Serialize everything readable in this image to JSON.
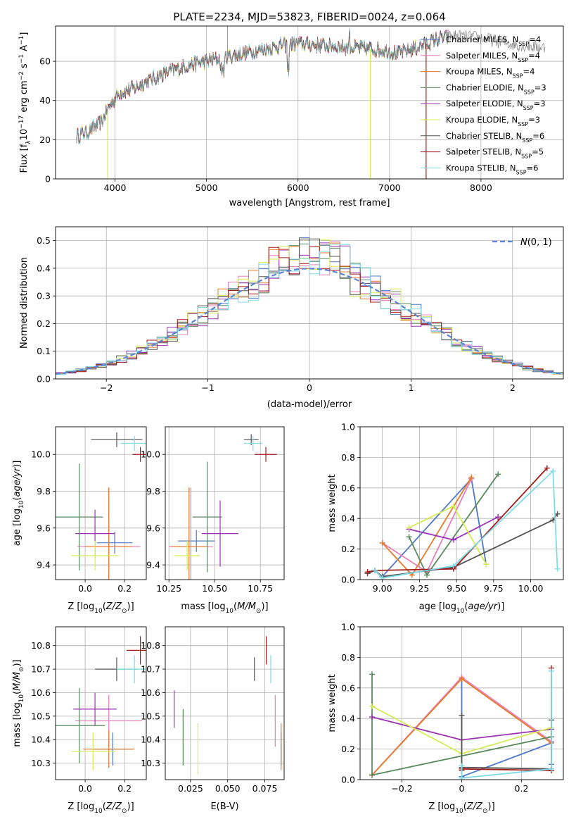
{
  "figure_title": "PLATE=2234, MJD=53823, FIBERID=0024, z=0.064",
  "palette": {
    "Chabrier MILES": "#4f78c8",
    "Salpeter MILES": "#e77fbb",
    "Kroupa MILES": "#e67c2c",
    "Chabrier ELODIE": "#5a8a5e",
    "Salpeter ELODIE": "#9b33b5",
    "Kroupa ELODIE": "#d6ec54",
    "Chabrier STELIB": "#555555",
    "Salpeter STELIB": "#a51c1c",
    "Kroupa STELIB": "#7fdce6",
    "data": "#808080",
    "normal": "#5b85d6"
  },
  "chart_data": [
    {
      "id": "spectrum",
      "type": "line",
      "xlabel": "wavelength [Angstrom, rest frame]",
      "ylabel": "Flux [f_λ 10^-17 erg cm^-2 s^-1 A^-1]",
      "xlim": [
        3350,
        8900
      ],
      "ylim": [
        0,
        78
      ],
      "xticks": [
        4000,
        5000,
        6000,
        7000,
        8000
      ],
      "yticks": [
        0,
        20,
        40,
        60
      ],
      "legend_position": "right",
      "legend": [
        {
          "model": "Chabrier MILES",
          "nssp": 4
        },
        {
          "model": "Salpeter MILES",
          "nssp": 4
        },
        {
          "model": "Kroupa MILES",
          "nssp": 4
        },
        {
          "model": "Chabrier ELODIE",
          "nssp": 3
        },
        {
          "model": "Salpeter ELODIE",
          "nssp": 3
        },
        {
          "model": "Kroupa ELODIE",
          "nssp": 3
        },
        {
          "model": "Chabrier STELIB",
          "nssp": 6
        },
        {
          "model": "Salpeter STELIB",
          "nssp": 5
        },
        {
          "model": "Kroupa STELIB",
          "nssp": 6
        }
      ],
      "continuum": {
        "x": [
          3580,
          3700,
          3850,
          3950,
          4050,
          4200,
          4400,
          4600,
          4800,
          5000,
          5200,
          5500,
          5800,
          6000,
          6300,
          6600,
          6900,
          7100,
          7300,
          7500,
          7700,
          8000,
          8300,
          8700
        ],
        "y": [
          22,
          24,
          29,
          38,
          44,
          46,
          51,
          55,
          58,
          60,
          62,
          65,
          68,
          69,
          68,
          67,
          66,
          64,
          67,
          71,
          73,
          72,
          69,
          67
        ]
      },
      "model_end_wavelength": 7650,
      "drops": [
        {
          "series": "Kroupa ELODIE",
          "x": 3920
        },
        {
          "series": "Kroupa ELODIE",
          "x": 6790
        },
        {
          "series": "Salpeter STELIB",
          "x": 7400
        }
      ]
    },
    {
      "id": "residuals",
      "type": "histogram",
      "xlabel": "(data-model)/error",
      "ylabel": "Normed distribution",
      "xlim": [
        -2.5,
        2.5
      ],
      "ylim": [
        0,
        0.55
      ],
      "xticks": [
        -2,
        -1,
        0,
        1,
        2
      ],
      "yticks": [
        0.0,
        0.1,
        0.2,
        0.3,
        0.4,
        0.5
      ],
      "bin_width": 0.1,
      "reference_curve": "N(0,1)",
      "legend_position": "top-right"
    },
    {
      "id": "age_vs_Z",
      "type": "errorbar",
      "xlabel": "Z [log10(Z/Z_sun)]",
      "ylabel": "age [log10(age/yr)]",
      "xlim": [
        -0.15,
        0.31
      ],
      "ylim": [
        9.32,
        10.15
      ],
      "xticks": [
        0.0,
        0.2
      ],
      "yticks": [
        9.4,
        9.6,
        9.8,
        10.0
      ],
      "points": [
        {
          "series": "Chabrier MILES",
          "x": 0.15,
          "xerr": 0.09,
          "y": 9.52,
          "yerr": 0.06
        },
        {
          "series": "Salpeter MILES",
          "x": 0.12,
          "xerr": 0.16,
          "y": 9.5,
          "yerr": 0.32
        },
        {
          "series": "Kroupa MILES",
          "x": 0.12,
          "xerr": 0.12,
          "y": 9.5,
          "yerr": 0.32
        },
        {
          "series": "Chabrier ELODIE",
          "x": -0.03,
          "xerr": 0.12,
          "y": 9.66,
          "yerr": 0.29
        },
        {
          "series": "Salpeter ELODIE",
          "x": 0.05,
          "xerr": 0.1,
          "y": 9.57,
          "yerr": 0.13
        },
        {
          "series": "Kroupa ELODIE",
          "x": 0.05,
          "xerr": 0.12,
          "y": 9.45,
          "yerr": 0.08
        },
        {
          "series": "Chabrier STELIB",
          "x": 0.16,
          "xerr": 0.13,
          "y": 10.08,
          "yerr": 0.04
        },
        {
          "series": "Salpeter STELIB",
          "x": 0.28,
          "xerr": 0.04,
          "y": 10.0,
          "yerr": 0.04
        },
        {
          "series": "Kroupa STELIB",
          "x": 0.25,
          "xerr": 0.07,
          "y": 10.06,
          "yerr": 0.04
        }
      ]
    },
    {
      "id": "age_vs_mass",
      "type": "errorbar",
      "xlabel": "mass [log10(M/M_sun)]",
      "ylabel": "",
      "xlim": [
        10.23,
        10.88
      ],
      "ylim": [
        9.32,
        10.15
      ],
      "xticks": [
        10.25,
        10.5,
        10.75
      ],
      "yticks": [
        9.4,
        9.6,
        9.8,
        10.0
      ],
      "points": [
        {
          "series": "Chabrier MILES",
          "x": 10.4,
          "xerr": 0.1,
          "y": 9.53,
          "yerr": 0.06
        },
        {
          "series": "Salpeter MILES",
          "x": 10.37,
          "xerr": 0.12,
          "y": 9.5,
          "yerr": 0.32
        },
        {
          "series": "Kroupa MILES",
          "x": 10.36,
          "xerr": 0.1,
          "y": 9.5,
          "yerr": 0.32
        },
        {
          "series": "Chabrier ELODIE",
          "x": 10.46,
          "xerr": 0.08,
          "y": 9.66,
          "yerr": 0.3
        },
        {
          "series": "Salpeter ELODIE",
          "x": 10.53,
          "xerr": 0.1,
          "y": 9.57,
          "yerr": 0.18
        },
        {
          "series": "Kroupa ELODIE",
          "x": 10.35,
          "xerr": 0.07,
          "y": 9.45,
          "yerr": 0.08
        },
        {
          "series": "Chabrier STELIB",
          "x": 10.7,
          "xerr": 0.04,
          "y": 10.08,
          "yerr": 0.03
        },
        {
          "series": "Salpeter STELIB",
          "x": 10.78,
          "xerr": 0.06,
          "y": 10.0,
          "yerr": 0.04
        },
        {
          "series": "Kroupa STELIB",
          "x": 10.71,
          "xerr": 0.05,
          "y": 10.06,
          "yerr": 0.04
        }
      ]
    },
    {
      "id": "weight_vs_age",
      "type": "line",
      "xlabel": "age [log10(age/yr)]",
      "ylabel": "mass weight",
      "xlim": [
        8.85,
        10.22
      ],
      "ylim": [
        0.0,
        1.0
      ],
      "xticks": [
        9.0,
        9.25,
        9.5,
        9.75,
        10.0
      ],
      "yticks": [
        0.0,
        0.2,
        0.4,
        0.6,
        0.8,
        1.0
      ],
      "series": [
        {
          "name": "Chabrier MILES",
          "x": [
            9.0,
            9.6,
            9.7
          ],
          "y": [
            0.02,
            0.66,
            0.1
          ]
        },
        {
          "name": "Salpeter MILES",
          "x": [
            9.0,
            9.3,
            9.6
          ],
          "y": [
            0.24,
            0.05,
            0.66
          ]
        },
        {
          "name": "Kroupa MILES",
          "x": [
            9.0,
            9.2,
            9.6
          ],
          "y": [
            0.24,
            0.03,
            0.67
          ]
        },
        {
          "name": "Chabrier ELODIE",
          "x": [
            9.18,
            9.3,
            9.78
          ],
          "y": [
            0.28,
            0.03,
            0.69
          ]
        },
        {
          "name": "Salpeter ELODIE",
          "x": [
            9.18,
            9.48,
            9.78
          ],
          "y": [
            0.33,
            0.26,
            0.41
          ]
        },
        {
          "name": "Kroupa ELODIE",
          "x": [
            9.18,
            9.48,
            9.7
          ],
          "y": [
            0.34,
            0.48,
            0.1
          ]
        },
        {
          "name": "Chabrier STELIB",
          "x": [
            8.9,
            8.95,
            9.0,
            9.48,
            10.15,
            10.18
          ],
          "y": [
            0.04,
            0.06,
            0.02,
            0.08,
            0.39,
            0.43
          ]
        },
        {
          "name": "Salpeter STELIB",
          "x": [
            8.9,
            8.95,
            9.48,
            10.11
          ],
          "y": [
            0.05,
            0.06,
            0.07,
            0.73
          ]
        },
        {
          "name": "Kroupa STELIB",
          "x": [
            8.95,
            9.0,
            9.48,
            10.15,
            10.18
          ],
          "y": [
            0.06,
            0.01,
            0.09,
            0.71,
            0.07
          ]
        }
      ]
    },
    {
      "id": "mass_vs_Z",
      "type": "errorbar",
      "xlabel": "Z [log10(Z/Z_sun)]",
      "ylabel": "mass [log10(M/M_sun)]",
      "xlim": [
        -0.15,
        0.31
      ],
      "ylim": [
        10.23,
        10.88
      ],
      "xticks": [
        0.0,
        0.2
      ],
      "yticks": [
        10.3,
        10.4,
        10.5,
        10.6,
        10.7,
        10.8
      ],
      "points": [
        {
          "series": "Chabrier MILES",
          "x": 0.14,
          "xerr": 0.1,
          "y": 10.36,
          "yerr": 0.07
        },
        {
          "series": "Salpeter MILES",
          "x": 0.12,
          "xerr": 0.17,
          "y": 10.48,
          "yerr": 0.11
        },
        {
          "series": "Kroupa MILES",
          "x": 0.12,
          "xerr": 0.13,
          "y": 10.36,
          "yerr": 0.08
        },
        {
          "series": "Chabrier ELODIE",
          "x": -0.03,
          "xerr": 0.13,
          "y": 10.46,
          "yerr": 0.16
        },
        {
          "series": "Salpeter ELODIE",
          "x": 0.05,
          "xerr": 0.11,
          "y": 10.53,
          "yerr": 0.07
        },
        {
          "series": "Kroupa ELODIE",
          "x": 0.04,
          "xerr": 0.11,
          "y": 10.35,
          "yerr": 0.08
        },
        {
          "series": "Chabrier STELIB",
          "x": 0.16,
          "xerr": 0.11,
          "y": 10.7,
          "yerr": 0.05
        },
        {
          "series": "Salpeter STELIB",
          "x": 0.28,
          "xerr": 0.07,
          "y": 10.78,
          "yerr": 0.06
        },
        {
          "series": "Kroupa STELIB",
          "x": 0.25,
          "xerr": 0.09,
          "y": 10.7,
          "yerr": 0.06
        }
      ]
    },
    {
      "id": "mass_vs_EBV",
      "type": "errorbar",
      "xlabel": "E(B-V)",
      "ylabel": "",
      "xlim": [
        0.008,
        0.088
      ],
      "ylim": [
        10.23,
        10.88
      ],
      "xticks": [
        0.025,
        0.05,
        0.075
      ],
      "xticklabels": [
        "0.025",
        "0.050",
        "0.075"
      ],
      "yticks": [
        10.3,
        10.4,
        10.5,
        10.6,
        10.7,
        10.8
      ],
      "points": [
        {
          "series": "Chabrier MILES",
          "x": 0.086,
          "xerr": 0.0,
          "y": 10.36,
          "yerr": 0.07
        },
        {
          "series": "Salpeter MILES",
          "x": 0.082,
          "xerr": 0.0,
          "y": 10.48,
          "yerr": 0.11
        },
        {
          "series": "Kroupa MILES",
          "x": 0.086,
          "xerr": 0.0,
          "y": 10.37,
          "yerr": 0.1
        },
        {
          "series": "Chabrier ELODIE",
          "x": 0.02,
          "xerr": 0.0,
          "y": 10.41,
          "yerr": 0.12
        },
        {
          "series": "Salpeter ELODIE",
          "x": 0.014,
          "xerr": 0.0,
          "y": 10.53,
          "yerr": 0.08
        },
        {
          "series": "Kroupa ELODIE",
          "x": 0.03,
          "xerr": 0.0,
          "y": 10.36,
          "yerr": 0.11
        },
        {
          "series": "Chabrier STELIB",
          "x": 0.068,
          "xerr": 0.0,
          "y": 10.7,
          "yerr": 0.05
        },
        {
          "series": "Salpeter STELIB",
          "x": 0.076,
          "xerr": 0.0,
          "y": 10.78,
          "yerr": 0.06
        },
        {
          "series": "Kroupa STELIB",
          "x": 0.079,
          "xerr": 0.0,
          "y": 10.7,
          "yerr": 0.06
        }
      ]
    },
    {
      "id": "weight_vs_Z",
      "type": "line",
      "xlabel": "Z [log10(Z/Z_sun)]",
      "ylabel": "mass weight",
      "xlim": [
        -0.34,
        0.34
      ],
      "ylim": [
        0.0,
        1.0
      ],
      "xticks": [
        -0.2,
        0.0,
        0.2
      ],
      "yticks": [
        0.0,
        0.2,
        0.4,
        0.6,
        0.8,
        1.0
      ],
      "series": [
        {
          "name": "Chabrier MILES",
          "x": [
            0.0,
            0.0,
            0.3,
            0.3
          ],
          "y": [
            0.66,
            0.02,
            0.24,
            0.1
          ]
        },
        {
          "name": "Salpeter MILES",
          "x": [
            -0.3,
            0.0,
            0.3
          ],
          "y": [
            0.03,
            0.67,
            0.25
          ]
        },
        {
          "name": "Kroupa MILES",
          "x": [
            -0.3,
            0.0,
            0.3
          ],
          "y": [
            0.03,
            0.66,
            0.24
          ]
        },
        {
          "name": "Chabrier ELODIE",
          "x": [
            -0.3,
            -0.3,
            0.3
          ],
          "y": [
            0.69,
            0.03,
            0.28
          ]
        },
        {
          "name": "Salpeter ELODIE",
          "x": [
            -0.3,
            0.0,
            0.3
          ],
          "y": [
            0.41,
            0.26,
            0.33
          ]
        },
        {
          "name": "Kroupa ELODIE",
          "x": [
            -0.3,
            0.0,
            0.3
          ],
          "y": [
            0.48,
            0.17,
            0.34
          ]
        },
        {
          "name": "Chabrier STELIB",
          "x": [
            0.0,
            0.0,
            0.3,
            0.3
          ],
          "y": [
            0.42,
            0.08,
            0.07,
            0.39
          ]
        },
        {
          "name": "Salpeter STELIB",
          "x": [
            0.0,
            0.0,
            0.3,
            0.3
          ],
          "y": [
            0.06,
            0.07,
            0.06,
            0.73
          ]
        },
        {
          "name": "Kroupa STELIB",
          "x": [
            0.0,
            0.0,
            0.3,
            0.3
          ],
          "y": [
            0.09,
            0.01,
            0.07,
            0.71
          ]
        }
      ]
    }
  ]
}
